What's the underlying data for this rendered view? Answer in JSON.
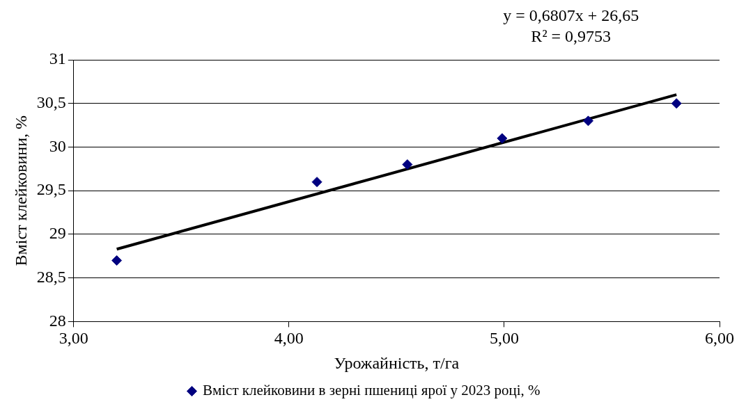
{
  "chart_data": {
    "type": "scatter",
    "xlabel": "Урожайність, т/га",
    "ylabel": "Вміст клейковини, %",
    "xlim": [
      3,
      6
    ],
    "xticks": [
      {
        "value": 3,
        "label": "3,00"
      },
      {
        "value": 4,
        "label": "4,00"
      },
      {
        "value": 5,
        "label": "5,00"
      },
      {
        "value": 6,
        "label": "6,00"
      }
    ],
    "ylim": [
      28,
      31
    ],
    "yticks": [
      28,
      {
        "value": 28.5,
        "label": "28,5"
      },
      29,
      {
        "value": 29.5,
        "label": "29,5"
      },
      30,
      {
        "value": 30.5,
        "label": "30,5"
      },
      31
    ],
    "grid": "y",
    "legend": "bottom",
    "annotations": [
      "y = 0,6807x + 26,65",
      "R² = 0,9753"
    ],
    "series": [
      {
        "name": "Вміст клейковини в зерні пшениці ярої у 2023 році, %",
        "type": "scatter",
        "color": "#000080",
        "marker": "diamond",
        "x": [
          3.2,
          4.13,
          4.55,
          4.99,
          5.39,
          5.8
        ],
        "values": [
          28.7,
          29.6,
          29.8,
          30.1,
          30.3,
          30.5
        ]
      },
      {
        "type": "line",
        "color": "#000000",
        "marker": "none",
        "line_style": "solid",
        "x": [
          3.2,
          5.8
        ],
        "values": [
          28.83,
          30.6
        ]
      }
    ]
  }
}
